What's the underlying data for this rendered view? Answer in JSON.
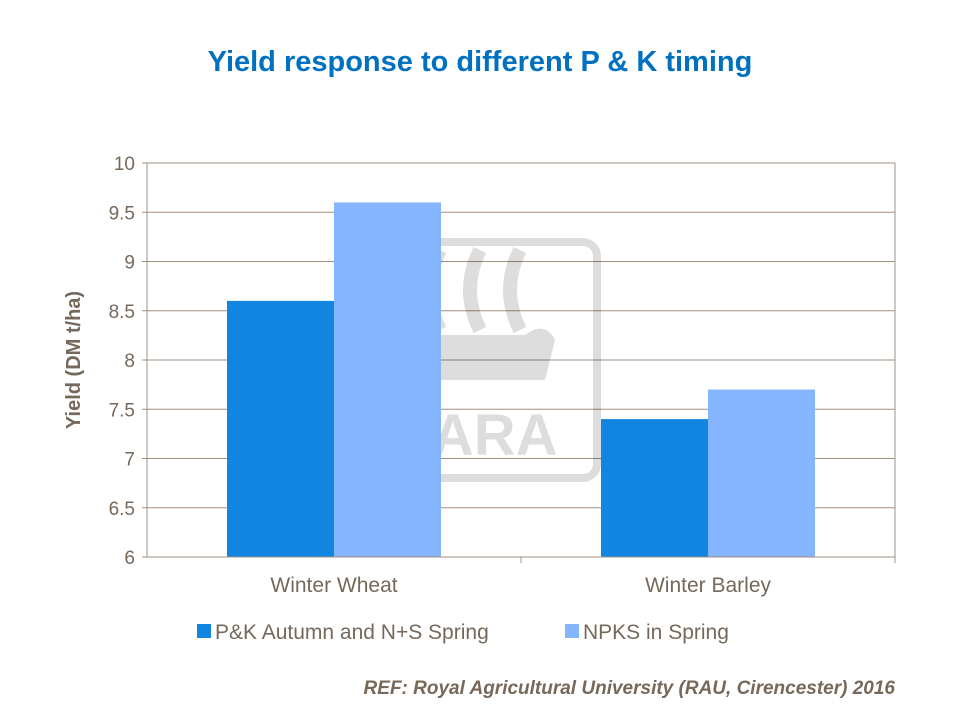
{
  "chart_data": {
    "type": "bar",
    "title": "Yield response to different P & K timing",
    "xlabel": "",
    "ylabel": "Yield (DM t/ha)",
    "ylim": [
      6,
      10
    ],
    "yticks": [
      "6",
      "6.5",
      "7",
      "7.5",
      "8",
      "8.5",
      "9",
      "9.5",
      "10"
    ],
    "grid": true,
    "legend_placement": "bottom",
    "categories": [
      "Winter Wheat",
      "Winter Barley"
    ],
    "series": [
      {
        "name": "P&K Autumn and N+S Spring",
        "values": [
          8.6,
          7.4
        ],
        "color": "#1185e0"
      },
      {
        "name": "NPKS in Spring",
        "values": [
          9.6,
          7.7
        ],
        "color": "#85b5ff"
      }
    ]
  },
  "footer": {
    "reference": "REF: Royal Agricultural University (RAU, Cirencester) 2016"
  },
  "watermark": {
    "text": "YARA"
  },
  "colors": {
    "title": "#0070c0",
    "text": "#76685a",
    "grid": "#a09080"
  }
}
